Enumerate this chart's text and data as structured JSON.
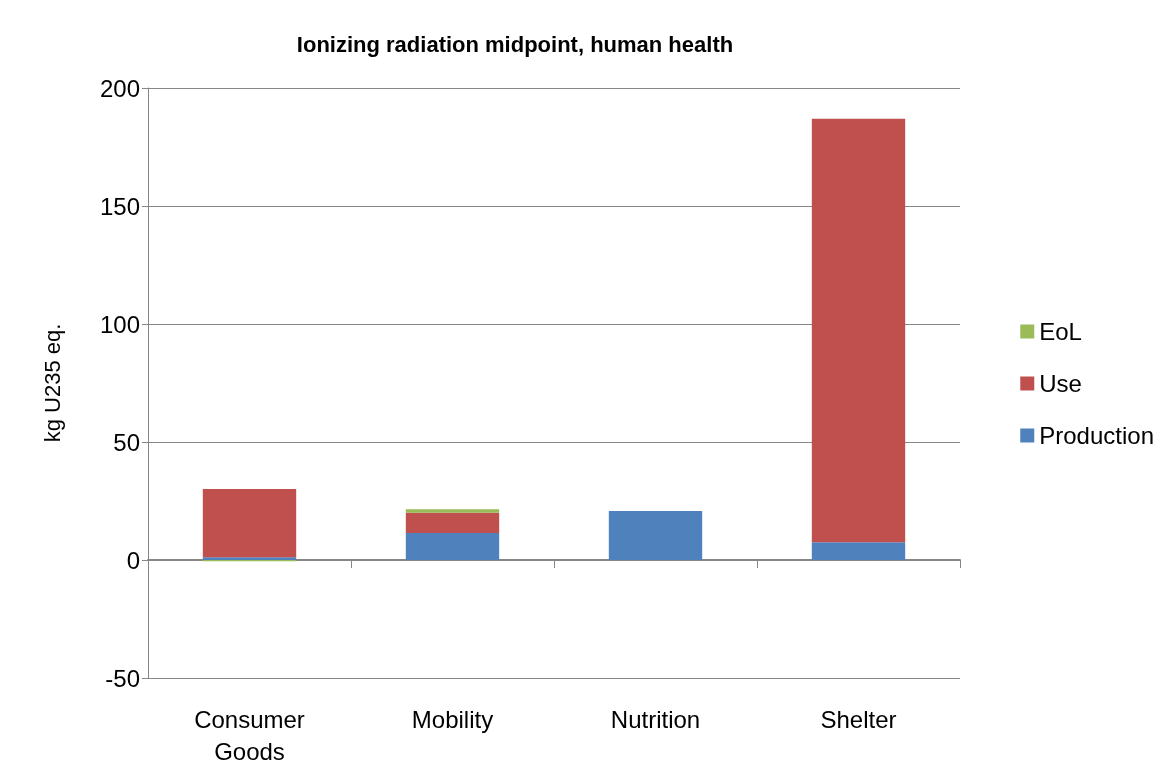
{
  "chart_data": {
    "type": "bar",
    "title": "Ionizing radiation midpoint, human health",
    "ylabel": "kg U235 eq.",
    "categories": [
      "Consumer\nGoods",
      "Mobility",
      "Nutrition",
      "Shelter"
    ],
    "series": [
      {
        "name": "Production",
        "color": "#4f81bd",
        "values": [
          1.2,
          11.4,
          20.8,
          7.5
        ]
      },
      {
        "name": "Use",
        "color": "#c0504d",
        "values": [
          28.9,
          8.6,
          0,
          179.5
        ]
      },
      {
        "name": "EoL",
        "color": "#9bbb59",
        "values": [
          -0.5,
          1.5,
          0,
          0
        ]
      }
    ],
    "stacked": true,
    "ylim": [
      -50,
      200
    ],
    "yticks": [
      -50,
      0,
      50,
      100,
      150,
      200
    ],
    "grid": "y",
    "legend": "right"
  }
}
